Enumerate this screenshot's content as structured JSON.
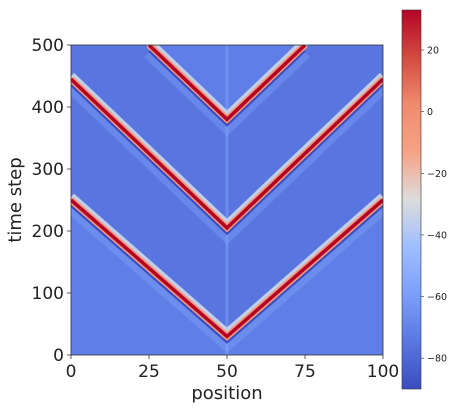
{
  "chart_data": {
    "type": "heatmap",
    "title": "",
    "xlabel": "position",
    "ylabel": "time step",
    "xlim": [
      0,
      100
    ],
    "ylim": [
      0,
      500
    ],
    "x_ticks": [
      0,
      25,
      50,
      75,
      100
    ],
    "y_ticks": [
      0,
      100,
      200,
      300,
      400,
      500
    ],
    "colormap": "coolwarm",
    "value_range": [
      -90,
      33
    ],
    "colorbar_ticks": [
      20,
      0,
      -20,
      -40,
      -60,
      -80
    ],
    "colorbar_tick_labels": [
      "20",
      "0",
      "−20",
      "−40",
      "−60",
      "−80"
    ],
    "background_value": -72,
    "wavefront_peak_value": 33,
    "wavefront_trough_value": -90,
    "wavefronts": [
      {
        "name": "",
        "points": [
          [
            0,
            250
          ],
          [
            50,
            30
          ],
          [
            100,
            250
          ]
        ]
      },
      {
        "name": "",
        "points": [
          [
            0,
            445
          ],
          [
            50,
            205
          ],
          [
            100,
            445
          ]
        ]
      },
      {
        "name": "",
        "points": [
          [
            25,
            500
          ],
          [
            50,
            380
          ],
          [
            75,
            500
          ]
        ]
      }
    ]
  }
}
